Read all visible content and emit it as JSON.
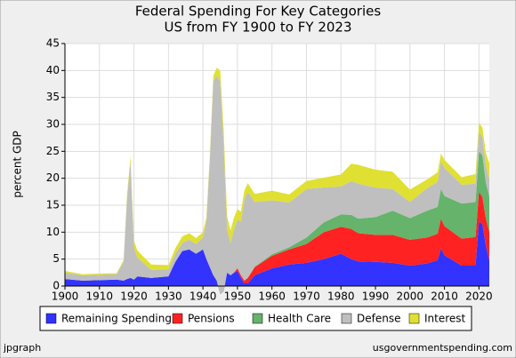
{
  "chart_data": {
    "type": "stacked-area",
    "title": "Federal Spending For Key Categories",
    "subtitle": "US from FY 1900 to FY 2023",
    "y_label": "percent GDP",
    "footer_left": "jpgraph",
    "footer_right": "usgovernmentspending.com",
    "x": [
      1900,
      1905,
      1910,
      1915,
      1917,
      1918,
      1919,
      1920,
      1921,
      1925,
      1930,
      1932,
      1934,
      1936,
      1938,
      1940,
      1941,
      1942,
      1943,
      1944,
      1945,
      1946,
      1947,
      1948,
      1949,
      1950,
      1951,
      1952,
      1953,
      1955,
      1960,
      1965,
      1970,
      1975,
      1980,
      1983,
      1985,
      1990,
      1995,
      2000,
      2005,
      2008,
      2009,
      2010,
      2015,
      2019,
      2020,
      2021,
      2022,
      2023
    ],
    "series": [
      {
        "name": "Remaining Spending",
        "color": "#3333ff",
        "values": [
          1.3,
          1.0,
          1.1,
          1.2,
          1.0,
          1.3,
          1.5,
          1.2,
          1.8,
          1.5,
          1.8,
          4.5,
          6.5,
          6.8,
          6.0,
          6.8,
          5.0,
          3.5,
          2.0,
          1.0,
          -1.5,
          -1.0,
          2.5,
          2.0,
          2.5,
          2.8,
          1.5,
          0.5,
          0.5,
          2.0,
          3.3,
          4.0,
          4.3,
          5.0,
          6.0,
          5.0,
          4.6,
          4.5,
          4.3,
          3.8,
          4.2,
          4.8,
          7.0,
          5.7,
          3.8,
          3.8,
          12.0,
          11.5,
          7.5,
          4.8
        ]
      },
      {
        "name": "Pensions",
        "color": "#ff2222",
        "values": [
          0,
          0,
          0,
          0,
          0,
          0,
          0,
          0,
          0,
          0,
          0,
          0,
          0,
          0,
          0,
          0,
          0,
          0,
          0,
          0,
          0,
          0,
          0,
          0,
          0,
          0.5,
          0.5,
          0.5,
          1.0,
          1.5,
          2.3,
          2.8,
          3.5,
          5.0,
          5.0,
          5.6,
          5.2,
          5.0,
          5.2,
          4.8,
          4.8,
          4.9,
          5.5,
          5.4,
          5.0,
          5.3,
          5.5,
          5.0,
          5.0,
          5.3
        ]
      },
      {
        "name": "Health Care",
        "color": "#66b36b",
        "values": [
          0,
          0,
          0,
          0,
          0,
          0,
          0,
          0,
          0,
          0,
          0,
          0,
          0,
          0,
          0,
          0,
          0,
          0,
          0,
          0,
          0,
          0,
          0,
          0,
          0,
          0,
          0,
          0,
          0,
          0.1,
          0.3,
          0.4,
          1.2,
          1.8,
          2.3,
          2.6,
          2.7,
          3.3,
          4.5,
          4.0,
          5.0,
          5.0,
          5.5,
          5.6,
          6.5,
          6.5,
          7.5,
          7.8,
          6.7,
          6.5
        ]
      },
      {
        "name": "Defense",
        "color": "#bfbfbf",
        "values": [
          1.2,
          1.0,
          1.0,
          1.0,
          3.5,
          15,
          21.5,
          6,
          3.5,
          1.5,
          1.3,
          1.5,
          1.5,
          1.8,
          1.8,
          2.2,
          7.0,
          20,
          36,
          38,
          39.5,
          27.5,
          8,
          6,
          8,
          9,
          10,
          15,
          16,
          12,
          10,
          8.3,
          9,
          6.5,
          5.2,
          6.3,
          6.5,
          5.5,
          4.0,
          3.0,
          4.2,
          4.6,
          5.2,
          5.2,
          3.5,
          3.4,
          3.7,
          3.3,
          3.2,
          3.3
        ]
      },
      {
        "name": "Interest",
        "color": "#e0e033",
        "values": [
          0.3,
          0.2,
          0.2,
          0.2,
          0.3,
          0.7,
          1.0,
          1.2,
          1.3,
          1.0,
          0.8,
          1.0,
          1.2,
          1.2,
          1.1,
          1.0,
          0.8,
          0.8,
          1.0,
          1.5,
          2.0,
          2.5,
          2.5,
          2.3,
          2.2,
          2.0,
          1.8,
          1.7,
          1.6,
          1.5,
          1.8,
          1.5,
          1.5,
          1.8,
          2.2,
          3.2,
          3.5,
          3.3,
          3.2,
          2.3,
          1.6,
          1.8,
          1.4,
          1.5,
          1.4,
          1.8,
          1.6,
          1.8,
          2.3,
          2.9
        ]
      }
    ],
    "xlim": [
      1900,
      2023
    ],
    "xticks": [
      1900,
      1910,
      1920,
      1930,
      1940,
      1950,
      1960,
      1970,
      1980,
      1990,
      2000,
      2010,
      2020
    ],
    "ylim": [
      0,
      45
    ],
    "yticks": [
      0,
      5,
      10,
      15,
      20,
      25,
      30,
      35,
      40,
      45
    ],
    "grid": true
  }
}
